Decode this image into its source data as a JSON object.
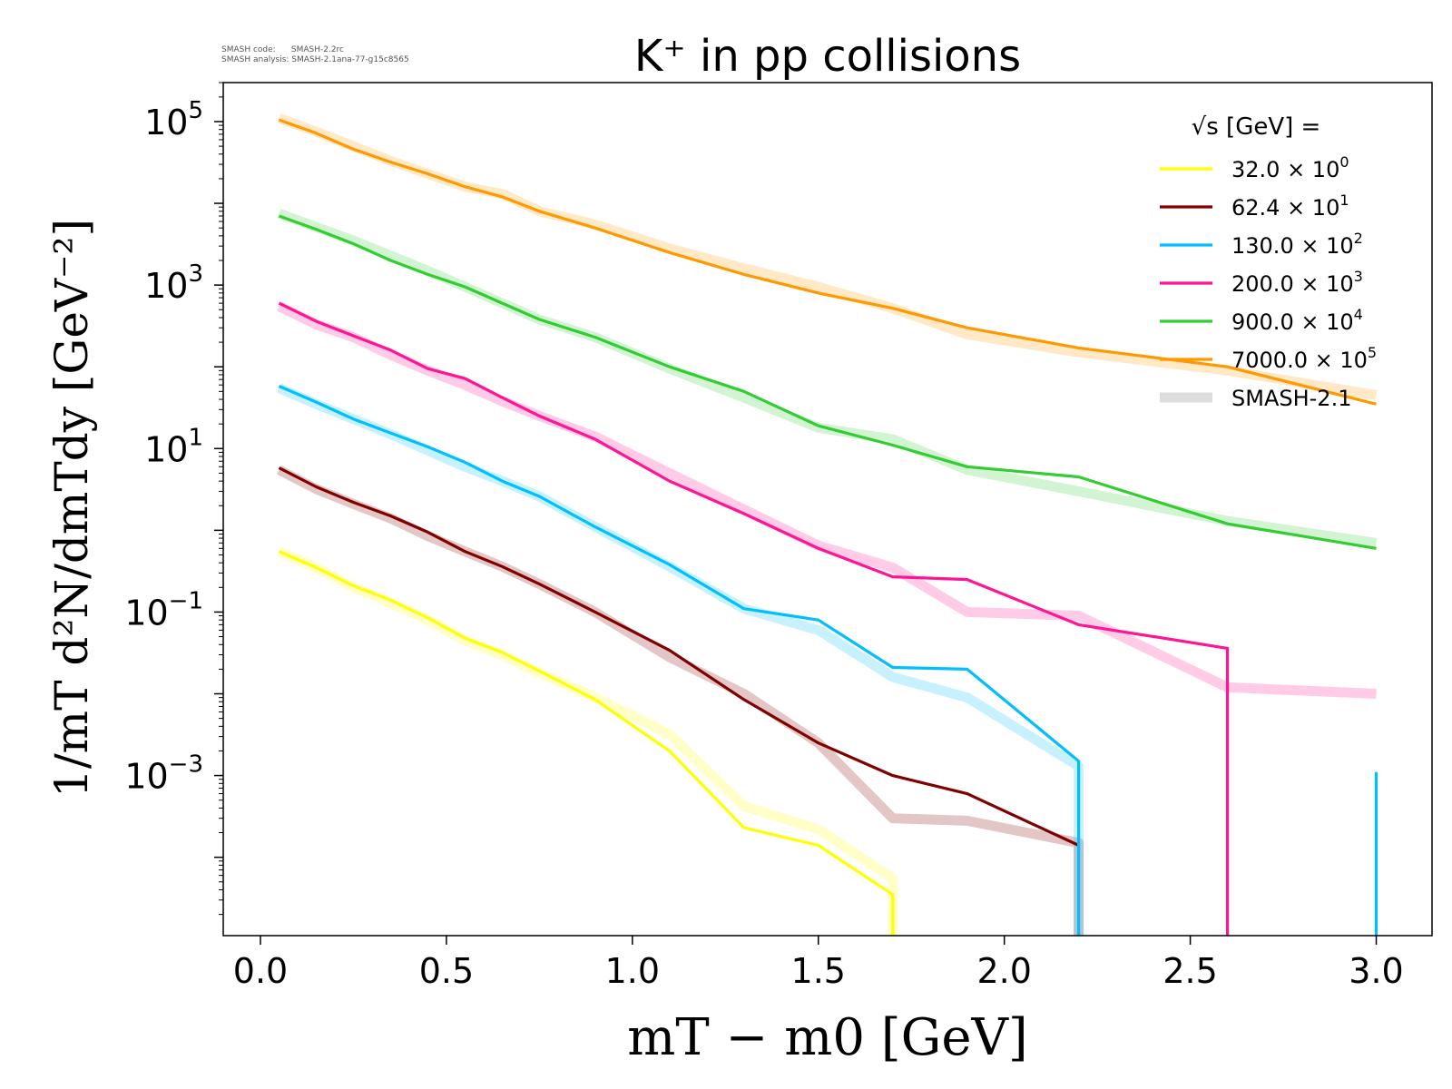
{
  "meta": {
    "code_line": "SMASH code:      SMASH-2.2rc",
    "analysis_line": "SMASH analysis: SMASH-2.1ana-77-g15c8565"
  },
  "colors": {
    "s32": "#ffff00",
    "s624": "#800000",
    "s130": "#00bfff",
    "s200": "#ff1493",
    "s900": "#32cd32",
    "s7000": "#ff9900",
    "smash": "#d9d9d9"
  },
  "chart_data": {
    "type": "line",
    "title": "K⁺ in pp collisions",
    "xlabel": "mT − m0 [GeV]",
    "ylabel": "1/mT d²N/dmTdy [GeV⁻²]",
    "xlim": [
      -0.1,
      3.15
    ],
    "ylim": [
      1.1e-05,
      300000
    ],
    "yscale": "log",
    "xticks": [
      0.0,
      0.5,
      1.0,
      1.5,
      2.0,
      2.5,
      3.0
    ],
    "xtick_labels": [
      "0.0",
      "0.5",
      "1.0",
      "1.5",
      "2.0",
      "2.5",
      "3.0"
    ],
    "yticks": [
      100000,
      1000,
      10,
      0.1,
      0.001
    ],
    "ytick_labels": [
      {
        "base": "10",
        "exp": "5"
      },
      {
        "base": "10",
        "exp": "3"
      },
      {
        "base": "10",
        "exp": "1"
      },
      {
        "base": "10",
        "exp": "−1"
      },
      {
        "base": "10",
        "exp": "−3"
      }
    ],
    "grid": false,
    "legend": {
      "title": "√s  [GeV] =",
      "placement": "top-right",
      "entries": [
        {
          "key": "s32",
          "base": "32.0 × 10",
          "exp": "0"
        },
        {
          "key": "s624",
          "base": "62.4 × 10",
          "exp": "1"
        },
        {
          "key": "s130",
          "base": "130.0 × 10",
          "exp": "2"
        },
        {
          "key": "s200",
          "base": "200.0 × 10",
          "exp": "3"
        },
        {
          "key": "s900",
          "base": "900.0 × 10",
          "exp": "4"
        },
        {
          "key": "s7000",
          "base": "7000.0 × 10",
          "exp": "5"
        },
        {
          "key": "smash",
          "base": "SMASH-2.1",
          "exp": ""
        }
      ]
    },
    "series": [
      {
        "key": "s32",
        "band": true,
        "x": [
          0.05,
          0.15,
          0.25,
          0.35,
          0.45,
          0.55,
          0.65,
          0.75,
          0.9,
          1.1,
          1.3,
          1.5,
          1.7,
          1.7
        ],
        "y": [
          0.55,
          0.35,
          0.2,
          0.13,
          0.08,
          0.045,
          0.03,
          0.018,
          0.009,
          0.0032,
          0.00042,
          0.00022,
          5.5e-05,
          1e-05
        ]
      },
      {
        "key": "s32",
        "band": false,
        "x": [
          0.05,
          0.15,
          0.25,
          0.35,
          0.45,
          0.55,
          0.65,
          0.75,
          0.9,
          1.1,
          1.3,
          1.5,
          1.7,
          1.7
        ],
        "y": [
          0.55,
          0.35,
          0.21,
          0.14,
          0.085,
          0.048,
          0.032,
          0.019,
          0.0085,
          0.002,
          0.00023,
          0.00014,
          3.5e-05,
          1e-05
        ]
      },
      {
        "key": "s624",
        "band": true,
        "x": [
          0.05,
          0.15,
          0.25,
          0.35,
          0.45,
          0.55,
          0.65,
          0.75,
          0.9,
          1.1,
          1.3,
          1.5,
          1.7,
          1.9,
          2.2,
          2.2
        ],
        "y": [
          5.5,
          3.2,
          2.1,
          1.4,
          0.85,
          0.55,
          0.36,
          0.22,
          0.1,
          0.028,
          0.01,
          0.0025,
          0.0003,
          0.00028,
          0.00015,
          1e-05
        ]
      },
      {
        "key": "s624",
        "band": false,
        "x": [
          0.05,
          0.15,
          0.25,
          0.35,
          0.45,
          0.55,
          0.65,
          0.75,
          0.9,
          1.1,
          1.3,
          1.5,
          1.7,
          1.9,
          2.2
        ],
        "y": [
          5.8,
          3.4,
          2.2,
          1.5,
          0.95,
          0.55,
          0.36,
          0.22,
          0.1,
          0.034,
          0.0085,
          0.0025,
          0.001,
          0.0006,
          0.00014
        ]
      },
      {
        "key": "s130",
        "band": true,
        "x": [
          0.05,
          0.15,
          0.25,
          0.35,
          0.45,
          0.55,
          0.65,
          0.75,
          0.9,
          1.1,
          1.3,
          1.5,
          1.7,
          1.9,
          2.2,
          2.2
        ],
        "y": [
          55,
          35,
          23,
          15,
          9.5,
          6,
          4,
          2.6,
          1.1,
          0.36,
          0.11,
          0.06,
          0.016,
          0.009,
          0.0013,
          1e-05
        ]
      },
      {
        "key": "s130",
        "band": false,
        "x": [
          0.05,
          0.15,
          0.25,
          0.35,
          0.45,
          0.55,
          0.65,
          0.75,
          0.9,
          1.1,
          1.3,
          1.5,
          1.7,
          1.9,
          2.2,
          2.2
        ],
        "y": [
          58,
          37,
          23,
          15.5,
          10.5,
          6.8,
          4,
          2.6,
          1.1,
          0.38,
          0.11,
          0.08,
          0.021,
          0.02,
          0.0015,
          1e-05
        ]
      },
      {
        "key": "s200",
        "band": true,
        "x": [
          0.05,
          0.15,
          0.25,
          0.35,
          0.45,
          0.55,
          0.65,
          0.75,
          0.9,
          1.1,
          1.3,
          1.5,
          1.7,
          1.9,
          2.2,
          2.6,
          3.0
        ],
        "y": [
          550,
          330,
          230,
          140,
          90,
          60,
          38,
          25,
          14,
          5,
          1.8,
          0.65,
          0.35,
          0.1,
          0.09,
          0.012,
          0.01
        ]
      },
      {
        "key": "s200",
        "band": false,
        "x": [
          0.05,
          0.15,
          0.25,
          0.35,
          0.45,
          0.55,
          0.65,
          0.75,
          0.9,
          1.1,
          1.3,
          1.5,
          1.7,
          1.9,
          2.2,
          2.6,
          2.6
        ],
        "y": [
          600,
          360,
          240,
          160,
          95,
          72,
          42,
          25,
          13,
          4,
          1.6,
          0.6,
          0.27,
          0.25,
          0.07,
          0.036,
          1e-05
        ]
      },
      {
        "key": "s900",
        "band": true,
        "x": [
          0.05,
          0.25,
          0.45,
          0.55,
          0.75,
          0.9,
          1.1,
          1.3,
          1.5,
          1.7,
          1.9,
          2.2,
          2.6,
          3.0
        ],
        "y": [
          7500,
          3500,
          1500,
          950,
          380,
          230,
          95,
          42,
          18,
          13,
          5.5,
          3,
          1.3,
          0.7
        ]
      },
      {
        "key": "s900",
        "band": false,
        "x": [
          0.05,
          0.15,
          0.25,
          0.35,
          0.45,
          0.55,
          0.65,
          0.75,
          0.9,
          1.1,
          1.3,
          1.5,
          1.7,
          1.9,
          2.2,
          2.6,
          3.0
        ],
        "y": [
          7000,
          4800,
          3200,
          2000,
          1350,
          950,
          600,
          380,
          230,
          100,
          50,
          19,
          11,
          6,
          4.5,
          1.2,
          0.6
        ]
      },
      {
        "key": "s7000",
        "band": true,
        "x": [
          0.05,
          0.15,
          0.35,
          0.55,
          0.65,
          0.75,
          0.9,
          1.1,
          1.3,
          1.5,
          1.7,
          1.9,
          2.2,
          2.6,
          3.0
        ],
        "y": [
          110000,
          75000,
          33000,
          16000,
          13000,
          8000,
          5500,
          2800,
          1600,
          950,
          520,
          250,
          150,
          90,
          45
        ]
      },
      {
        "key": "s7000",
        "band": false,
        "x": [
          0.05,
          0.15,
          0.25,
          0.35,
          0.45,
          0.55,
          0.65,
          0.75,
          0.9,
          1.1,
          1.3,
          1.5,
          1.7,
          1.9,
          2.2,
          2.6,
          3.0
        ],
        "y": [
          105000,
          72000,
          46000,
          32000,
          23000,
          16000,
          12000,
          8000,
          5000,
          2500,
          1350,
          800,
          520,
          300,
          170,
          100,
          35
        ]
      },
      {
        "key": "s130",
        "band": false,
        "x": [
          3.0,
          3.0
        ],
        "y": [
          0.0011,
          1e-05
        ]
      }
    ]
  }
}
